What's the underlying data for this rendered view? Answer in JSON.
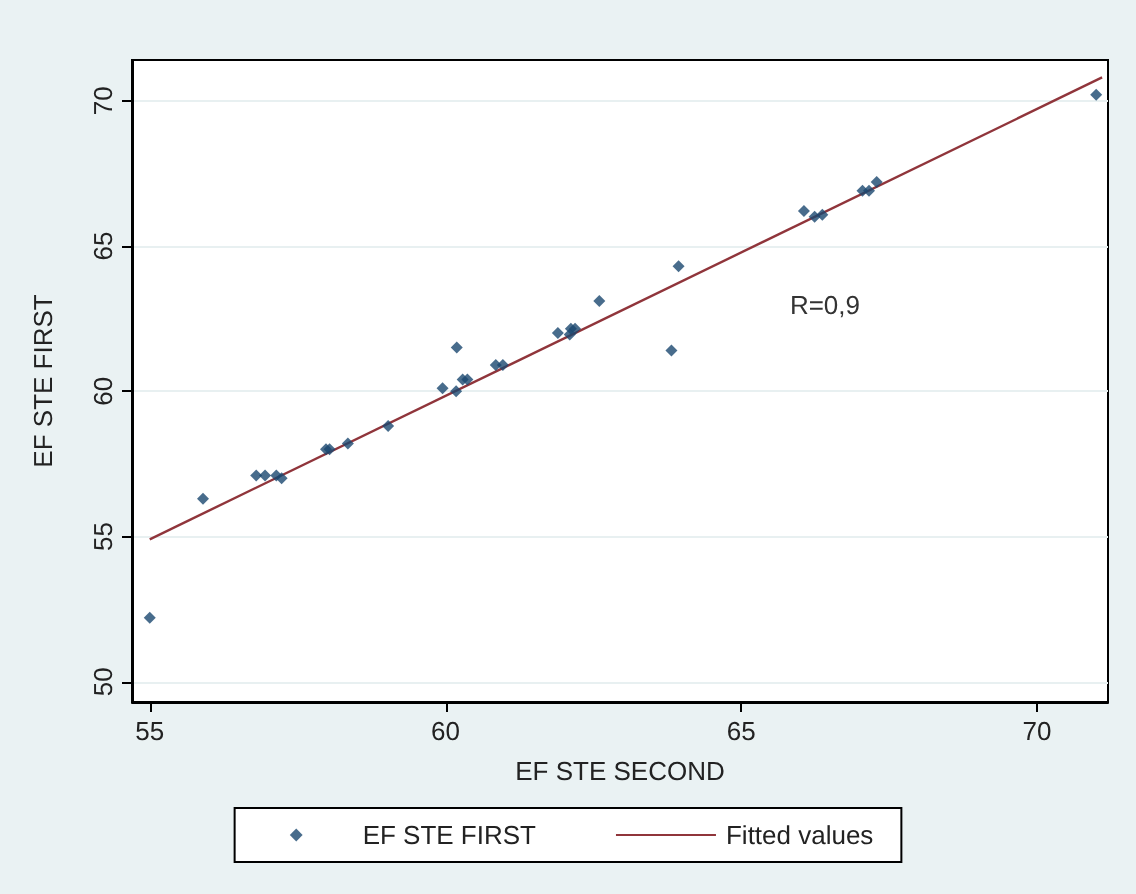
{
  "chart_data": {
    "type": "scatter",
    "xlabel": "EF STE SECOND",
    "ylabel": "EF STE FIRST",
    "xlim": [
      54.7,
      71.2
    ],
    "ylim": [
      49.3,
      71.4
    ],
    "xticks": [
      55,
      60,
      65,
      70
    ],
    "yticks": [
      50,
      55,
      60,
      65,
      70
    ],
    "grid": "y",
    "legend": "bottom",
    "marker": "diamond",
    "annotations": [
      "R=0,9"
    ],
    "series": [
      {
        "name": "EF STE FIRST",
        "color": "#1a476f",
        "x": [
          55.0,
          55.9,
          56.8,
          56.95,
          57.14,
          57.23,
          57.98,
          58.04,
          58.35,
          59.03,
          59.95,
          60.18,
          60.19,
          60.29,
          60.37,
          60.85,
          60.97,
          61.9,
          62.12,
          62.19,
          62.1,
          62.6,
          63.82,
          63.94,
          66.06,
          66.24,
          66.37,
          67.05,
          67.16,
          67.29,
          71.0
        ],
        "values": [
          52.2,
          56.3,
          57.1,
          57.1,
          57.1,
          57.0,
          58.0,
          58.0,
          58.2,
          58.8,
          60.1,
          60.0,
          61.5,
          60.4,
          60.4,
          60.9,
          60.9,
          62.0,
          62.15,
          62.15,
          61.95,
          63.1,
          61.4,
          64.3,
          66.2,
          66.0,
          66.07,
          66.9,
          66.9,
          67.2,
          70.2
        ]
      },
      {
        "name": "Fitted values",
        "type": "line",
        "color": "#90353b",
        "marker": "none",
        "x": [
          55.0,
          71.1
        ],
        "values": [
          54.9,
          70.8
        ]
      }
    ]
  }
}
